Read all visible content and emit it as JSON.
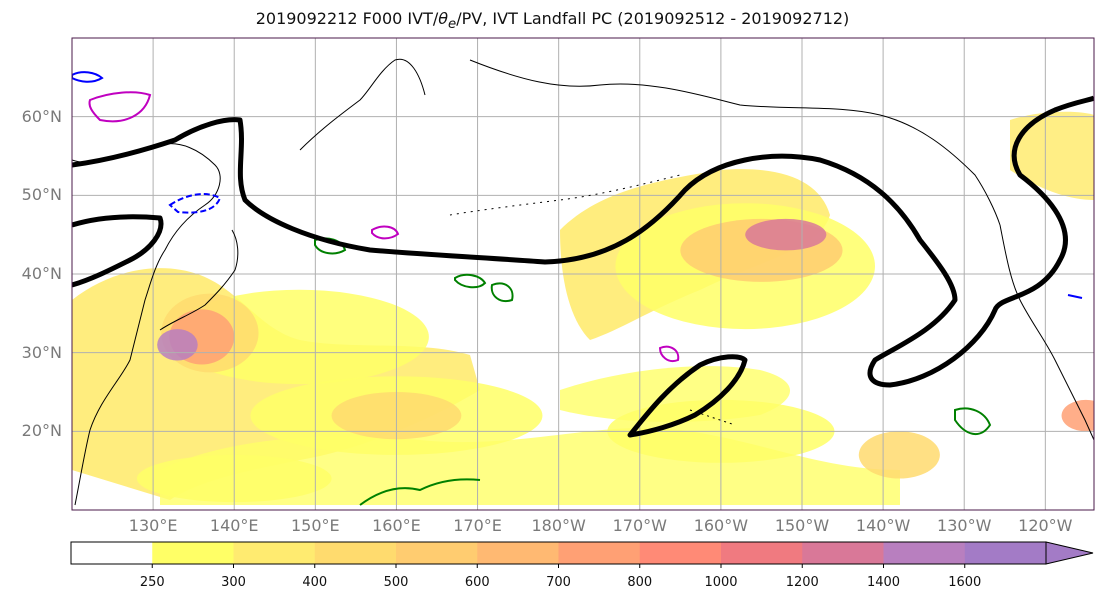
{
  "title": {
    "run": "2019092212 F000 IVT/",
    "theta_symbol": "θ",
    "theta_sub": "e",
    "rest": "/PV, IVT Landfall PC (2019092512 - 2019092712)"
  },
  "map": {
    "projection": "PlateCarree",
    "extent": {
      "lon_min": 120,
      "lon_max": 246,
      "lat_min": 10,
      "lat_max": 70
    },
    "grid_lon": [
      130,
      140,
      150,
      160,
      170,
      180,
      190,
      200,
      210,
      220,
      230,
      240
    ],
    "grid_lat": [
      20,
      30,
      40,
      50,
      60
    ],
    "lat_labels": [
      "60°N",
      "50°N",
      "40°N",
      "30°N",
      "20°N"
    ],
    "lon_labels": [
      "130°E",
      "140°E",
      "150°E",
      "160°E",
      "170°E",
      "180°W",
      "170°W",
      "160°W",
      "150°W",
      "140°W",
      "130°W",
      "120°W"
    ],
    "colors": {
      "coast": "#000000",
      "grid": "#b0b0b0",
      "pc_contour": "#000000",
      "pv_green": "#008000",
      "pv_magenta": "#c000c0",
      "pv_blue": "#0000ff"
    }
  },
  "colorbar": {
    "levels": [
      "250",
      "300",
      "400",
      "500",
      "600",
      "700",
      "800",
      "1000",
      "1200",
      "1400",
      "1600"
    ],
    "colors": [
      "#ffffff",
      "#ffff66",
      "#ffeb70",
      "#ffdb6e",
      "#ffcc70",
      "#ffb972",
      "#ffa074",
      "#ff8a76",
      "#f07a80",
      "#d97898",
      "#b87fbf",
      "#a37bc6"
    ],
    "extend": "max"
  },
  "ivt_field": [
    {
      "lon": 148.0,
      "lat": 32.0,
      "rx": 16,
      "ry": 6,
      "level": 1
    },
    {
      "lon": 137.0,
      "lat": 32.5,
      "rx": 6,
      "ry": 5,
      "level": 3
    },
    {
      "lon": 136.0,
      "lat": 32.0,
      "rx": 4,
      "ry": 3.5,
      "level": 6
    },
    {
      "lon": 133.0,
      "lat": 31.0,
      "rx": 2.5,
      "ry": 2,
      "level": 10
    },
    {
      "lon": 160.0,
      "lat": 22.0,
      "rx": 18,
      "ry": 5,
      "level": 1
    },
    {
      "lon": 160.0,
      "lat": 22.0,
      "rx": 8,
      "ry": 3,
      "level": 3
    },
    {
      "lon": 140.0,
      "lat": 14.0,
      "rx": 12,
      "ry": 3,
      "level": 1
    },
    {
      "lon": 203.0,
      "lat": 41.0,
      "rx": 16,
      "ry": 8,
      "level": 1
    },
    {
      "lon": 205.0,
      "lat": 43.0,
      "rx": 10,
      "ry": 4,
      "level": 4
    },
    {
      "lon": 208.0,
      "lat": 45.0,
      "rx": 5,
      "ry": 2,
      "level": 9
    },
    {
      "lon": 200.0,
      "lat": 20.0,
      "rx": 14,
      "ry": 4,
      "level": 1
    },
    {
      "lon": 222.0,
      "lat": 17.0,
      "rx": 5,
      "ry": 3,
      "level": 3
    },
    {
      "lon": 245.0,
      "lat": 22.0,
      "rx": 3,
      "ry": 2,
      "level": 6
    }
  ]
}
